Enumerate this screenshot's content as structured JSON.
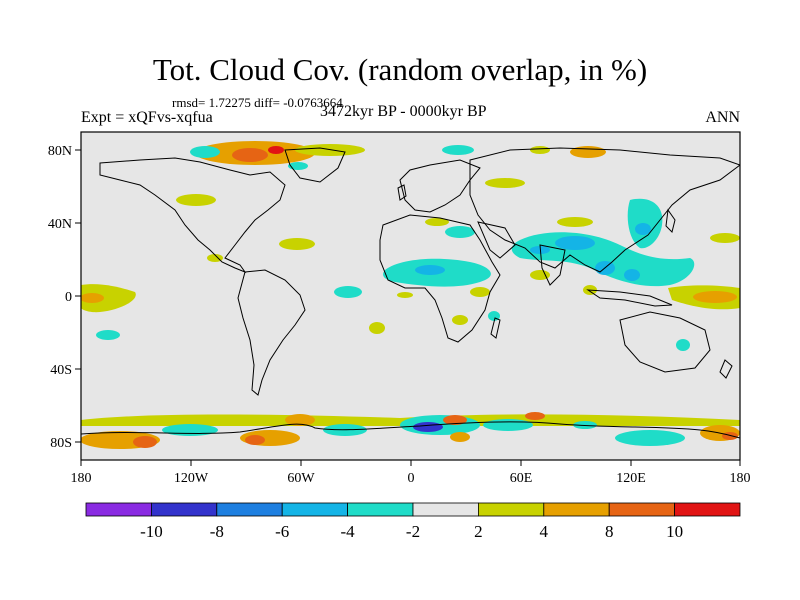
{
  "figure": {
    "title": "Tot. Cloud Cov. (random overlap, in %)",
    "stats_line": "rmsd= 1.72275 diff= -0.0763664",
    "left_label": "Expt = xQFvs-xqfua",
    "center_label": "3472kyr BP - 0000kyr BP",
    "right_label": "ANN"
  },
  "map": {
    "projection": "cylindrical-equidistant",
    "lon_range": [
      -180,
      180
    ],
    "lat_range": [
      -90,
      90
    ],
    "background_color": "#e6e6e6",
    "x_ticks": [
      "180",
      "120W",
      "60W",
      "0",
      "60E",
      "120E",
      "180"
    ],
    "y_ticks": [
      "80N",
      "40N",
      "0",
      "40S",
      "80S"
    ]
  },
  "colorbar": {
    "labels": [
      "-10",
      "-8",
      "-6",
      "-4",
      "-2",
      "2",
      "4",
      "8",
      "10"
    ],
    "colors": [
      "#8a2be2",
      "#3333cc",
      "#1e7fe0",
      "#14b4e6",
      "#1fdcc8",
      "#e6e6e6",
      "#c8d200",
      "#e6a000",
      "#e66414",
      "#e11414"
    ]
  }
}
